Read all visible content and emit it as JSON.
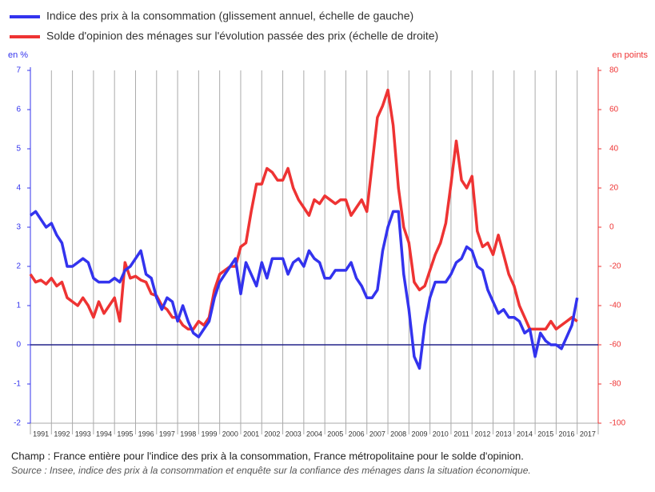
{
  "chart_data": {
    "type": "line",
    "y_label": "en %",
    "y2_label": "en points",
    "notes": [
      "Champ : France entière pour l'indice des prix à la consommation, France métropolitaine pour le solde d'opinion.",
      "Source : Insee, indice des prix à la consommation et enquête sur la confiance des ménages dans la situation économique."
    ],
    "legend": "top-left",
    "x": [
      1991,
      1991.25,
      1991.5,
      1991.75,
      1992,
      1992.25,
      1992.5,
      1992.75,
      1993,
      1993.25,
      1993.5,
      1993.75,
      1994,
      1994.25,
      1994.5,
      1994.75,
      1995,
      1995.25,
      1995.5,
      1995.75,
      1996,
      1996.25,
      1996.5,
      1996.75,
      1997,
      1997.25,
      1997.5,
      1997.75,
      1998,
      1998.25,
      1998.5,
      1998.75,
      1999,
      1999.25,
      1999.5,
      1999.75,
      2000,
      2000.25,
      2000.5,
      2000.75,
      2001,
      2001.25,
      2001.5,
      2001.75,
      2002,
      2002.25,
      2002.5,
      2002.75,
      2003,
      2003.25,
      2003.5,
      2003.75,
      2004,
      2004.25,
      2004.5,
      2004.75,
      2005,
      2005.25,
      2005.5,
      2005.75,
      2006,
      2006.25,
      2006.5,
      2006.75,
      2007,
      2007.25,
      2007.5,
      2007.75,
      2008,
      2008.25,
      2008.5,
      2008.75,
      2009,
      2009.25,
      2009.5,
      2009.75,
      2010,
      2010.25,
      2010.5,
      2010.75,
      2011,
      2011.25,
      2011.5,
      2011.75,
      2012,
      2012.25,
      2012.5,
      2012.75,
      2013,
      2013.25,
      2013.5,
      2013.75,
      2014,
      2014.25,
      2014.5,
      2014.75,
      2015,
      2015.25,
      2015.5,
      2015.75,
      2016,
      2016.25,
      2016.5,
      2016.75,
      2017
    ],
    "xlim": [
      1991,
      2018
    ],
    "xticks": [
      1991,
      1992,
      1993,
      1994,
      1995,
      1996,
      1997,
      1998,
      1999,
      2000,
      2001,
      2002,
      2003,
      2004,
      2005,
      2006,
      2007,
      2008,
      2009,
      2010,
      2011,
      2012,
      2013,
      2014,
      2015,
      2016,
      2017
    ],
    "ylim": [
      -2,
      7
    ],
    "yticks": [
      -2,
      -1,
      0,
      1,
      2,
      3,
      4,
      5,
      6,
      7
    ],
    "y2lim": [
      -100,
      80
    ],
    "y2ticks": [
      -100,
      -80,
      -60,
      -40,
      -20,
      0,
      20,
      40,
      60,
      80
    ],
    "series": [
      {
        "name": "Indice des prix à la consommation (glissement annuel, échelle de gauche)",
        "color": "#3333ee",
        "values": [
          3.3,
          3.4,
          3.2,
          3.0,
          3.1,
          2.8,
          2.6,
          2.0,
          2.0,
          2.1,
          2.2,
          2.1,
          1.7,
          1.6,
          1.6,
          1.6,
          1.7,
          1.6,
          1.9,
          2.0,
          2.2,
          2.4,
          1.8,
          1.7,
          1.2,
          0.9,
          1.2,
          1.1,
          0.6,
          1.0,
          0.6,
          0.3,
          0.2,
          0.4,
          0.6,
          1.2,
          1.6,
          1.8,
          2.0,
          2.2,
          1.3,
          2.1,
          1.8,
          1.5,
          2.1,
          1.7,
          2.2,
          2.2,
          2.2,
          1.8,
          2.1,
          2.2,
          2.0,
          2.4,
          2.2,
          2.1,
          1.7,
          1.7,
          1.9,
          1.9,
          1.9,
          2.1,
          1.7,
          1.5,
          1.2,
          1.2,
          1.4,
          2.4,
          3.0,
          3.4,
          3.4,
          1.8,
          0.9,
          -0.3,
          -0.6,
          0.5,
          1.2,
          1.6,
          1.6,
          1.6,
          1.8,
          2.1,
          2.2,
          2.5,
          2.4,
          2.0,
          1.9,
          1.4,
          1.1,
          0.8,
          0.9,
          0.7,
          0.7,
          0.6,
          0.3,
          0.4,
          -0.3,
          0.3,
          0.1,
          0.0,
          0.0,
          -0.1,
          0.2,
          0.5,
          1.2
        ]
      },
      {
        "name": "Solde d'opinion des ménages sur l'évolution passée des prix (échelle de droite)",
        "color": "#ee3333",
        "axis": "y2",
        "values": [
          -24,
          -28,
          -27,
          -29,
          -26,
          -30,
          -28,
          -36,
          -38,
          -40,
          -36,
          -40,
          -46,
          -38,
          -44,
          -40,
          -36,
          -48,
          -18,
          -26,
          -25,
          -27,
          -28,
          -34,
          -35,
          -40,
          -42,
          -46,
          -46,
          -50,
          -52,
          -52,
          -48,
          -50,
          -46,
          -32,
          -24,
          -22,
          -20,
          -20,
          -10,
          -8,
          8,
          22,
          22,
          30,
          28,
          24,
          24,
          30,
          20,
          14,
          10,
          6,
          14,
          12,
          16,
          14,
          12,
          14,
          14,
          6,
          10,
          14,
          8,
          32,
          56,
          62,
          70,
          52,
          20,
          0,
          -8,
          -28,
          -32,
          -30,
          -22,
          -14,
          -8,
          2,
          22,
          44,
          24,
          20,
          26,
          -2,
          -10,
          -8,
          -14,
          -4,
          -14,
          -24,
          -30,
          -40,
          -46,
          -52,
          -52,
          -52,
          -52,
          -48,
          -52,
          -50,
          -48,
          -46,
          -48
        ]
      }
    ]
  }
}
